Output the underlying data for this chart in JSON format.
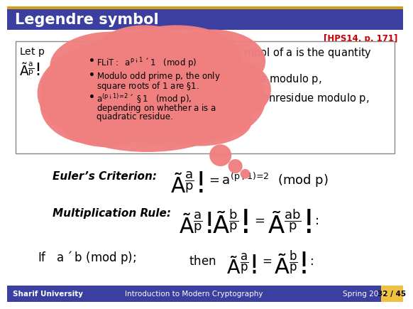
{
  "title": "Legendre symbol",
  "title_bg": "#3B3FA0",
  "title_top_stripe": "#D4A017",
  "title_fg": "#FFFFFF",
  "ref_text": "[HPS14, p. 171]",
  "ref_color": "#CC0000",
  "footer_bg": "#3B3FA0",
  "footer_fg": "#FFFFFF",
  "footer_left": "Sharif University",
  "footer_center": "Introduction to Modern Cryptography",
  "footer_right": "Spring 2015",
  "page_bg": "#F0C040",
  "page_text": "32 / 45",
  "cloud_color": "#F08080",
  "euler_label": "Euler’s Criterion:",
  "mult_label": "Multiplication Rule:",
  "box_right_line1": "mbol of $a$ is the quantity",
  "box_right_line2": "idue modulo $p$,",
  "box_right_line3": "ic nonresidue modulo $p$,"
}
